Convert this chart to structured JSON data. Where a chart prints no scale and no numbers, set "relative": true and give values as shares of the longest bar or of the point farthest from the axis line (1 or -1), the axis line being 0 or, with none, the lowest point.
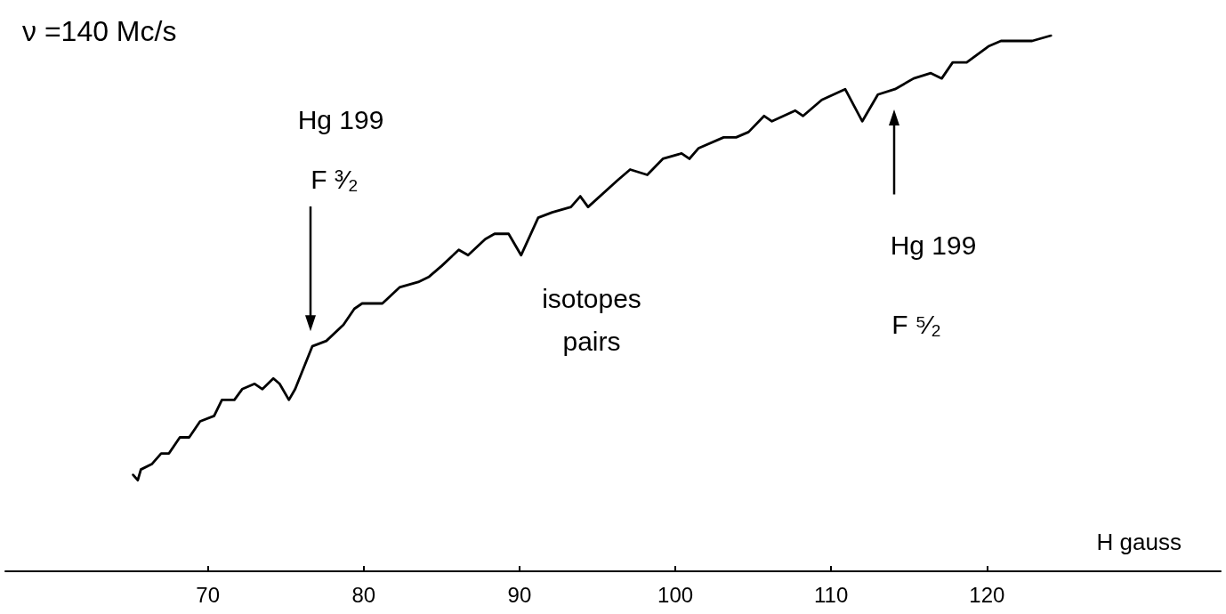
{
  "chart_data": {
    "type": "line",
    "title": "ν =140 Mc/s",
    "xlabel": "H gauss",
    "relative": true,
    "xlim": [
      57,
      135
    ],
    "xticks": [
      70,
      80,
      90,
      100,
      110,
      120
    ],
    "series": [
      {
        "color": "#000000",
        "x": [
          65.2,
          65.5,
          65.7,
          66.4,
          67.0,
          67.5,
          68.2,
          68.8,
          69.5,
          70.4,
          70.9,
          71.7,
          72.2,
          73.0,
          73.5,
          74.2,
          74.6,
          75.2,
          75.6,
          76.7,
          77.6,
          78.7,
          79.4,
          79.9,
          81.2,
          82.3,
          83.5,
          84.2,
          85.0,
          86.1,
          86.7,
          87.8,
          88.4,
          89.3,
          90.1,
          91.2,
          92.1,
          93.3,
          93.9,
          94.4,
          96.3,
          97.1,
          98.2,
          99.2,
          100.4,
          100.9,
          101.5,
          103.1,
          103.9,
          104.7,
          105.7,
          106.2,
          107.7,
          108.2,
          109.4,
          110.9,
          112.0,
          113.0,
          114.1,
          115.3,
          116.4,
          117.1,
          117.8,
          118.7,
          120.1,
          120.9,
          121.8,
          122.9,
          124.1
        ],
        "values": [
          0.18,
          0.17,
          0.19,
          0.2,
          0.22,
          0.22,
          0.25,
          0.25,
          0.28,
          0.29,
          0.32,
          0.32,
          0.34,
          0.35,
          0.34,
          0.36,
          0.35,
          0.32,
          0.34,
          0.42,
          0.43,
          0.46,
          0.49,
          0.5,
          0.5,
          0.53,
          0.54,
          0.55,
          0.57,
          0.6,
          0.59,
          0.62,
          0.63,
          0.63,
          0.59,
          0.66,
          0.67,
          0.68,
          0.7,
          0.68,
          0.73,
          0.75,
          0.74,
          0.77,
          0.78,
          0.77,
          0.79,
          0.81,
          0.81,
          0.82,
          0.85,
          0.84,
          0.86,
          0.85,
          0.88,
          0.9,
          0.84,
          0.89,
          0.9,
          0.92,
          0.93,
          0.92,
          0.95,
          0.95,
          0.98,
          0.99,
          0.99,
          0.99,
          1.0
        ]
      }
    ],
    "annotations": [
      "Hg 199",
      "F ³⁄₂",
      "isotopes",
      "pairs",
      "Hg 199",
      "F ⁵⁄₂"
    ]
  }
}
